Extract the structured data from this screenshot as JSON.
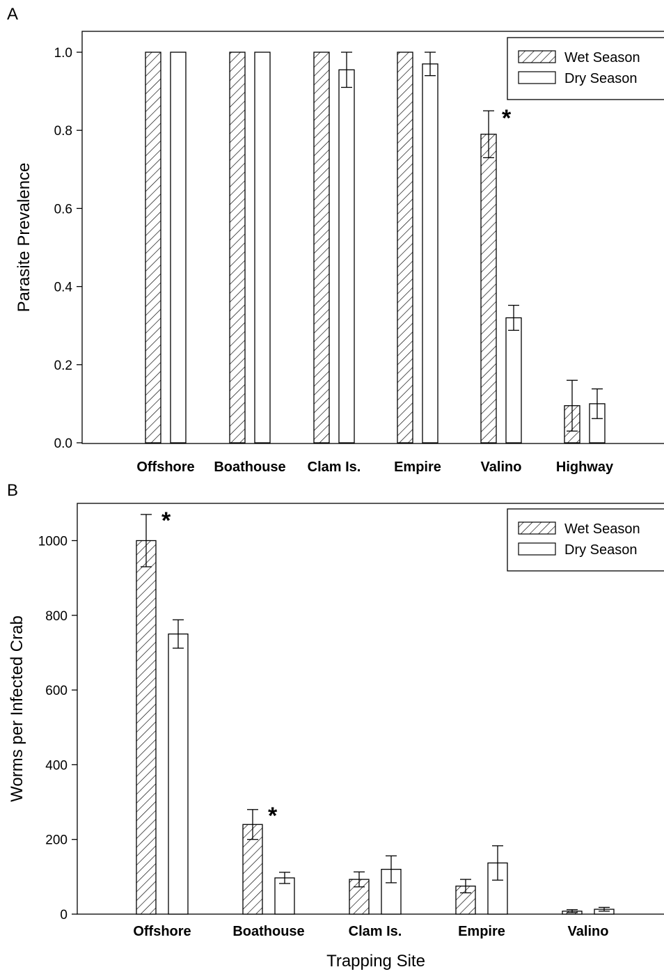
{
  "chart_data": [
    {
      "type": "bar",
      "panel_label": "A",
      "ylabel": "Parasite Prevalence",
      "xlabel": "",
      "ylim": [
        0,
        1.05
      ],
      "yticks": [
        0.0,
        0.2,
        0.4,
        0.6,
        0.8,
        1.0
      ],
      "ytick_labels": [
        "0.0",
        "0.2",
        "0.4",
        "0.6",
        "0.8",
        "1.0"
      ],
      "categories": [
        "Offshore",
        "Boathouse",
        "Clam Is.",
        "Empire",
        "Valino",
        "Highway"
      ],
      "series": [
        {
          "name": "Wet Season",
          "pattern": "hatched",
          "values": [
            1.0,
            1.0,
            1.0,
            1.0,
            0.79,
            0.095
          ],
          "errors": [
            0,
            0,
            0,
            0,
            0.06,
            0.065
          ]
        },
        {
          "name": "Dry Season",
          "pattern": "open",
          "values": [
            1.0,
            1.0,
            0.955,
            0.97,
            0.32,
            0.1
          ],
          "errors": [
            0,
            0,
            0.045,
            0.03,
            0.032,
            0.038
          ]
        }
      ],
      "significance_marks": [
        {
          "category": "Valino",
          "series": "Wet Season",
          "label": "*"
        }
      ],
      "legend": "top-right",
      "grid": false
    },
    {
      "type": "bar",
      "panel_label": "B",
      "ylabel": "Worms per Infected Crab",
      "xlabel": "Trapping Site",
      "ylim": [
        0,
        1100
      ],
      "yticks": [
        0,
        200,
        400,
        600,
        800,
        1000
      ],
      "ytick_labels": [
        "0",
        "200",
        "400",
        "600",
        "800",
        "1000"
      ],
      "categories": [
        "Offshore",
        "Boathouse",
        "Clam Is.",
        "Empire",
        "Valino"
      ],
      "series": [
        {
          "name": "Wet Season",
          "pattern": "hatched",
          "values": [
            1000,
            240,
            93,
            75,
            8
          ],
          "errors": [
            70,
            40,
            20,
            18,
            4
          ]
        },
        {
          "name": "Dry Season",
          "pattern": "open",
          "values": [
            750,
            97,
            120,
            137,
            13
          ],
          "errors": [
            38,
            15,
            36,
            46,
            5
          ]
        }
      ],
      "significance_marks": [
        {
          "category": "Offshore",
          "series": "Wet Season",
          "label": "*"
        },
        {
          "category": "Boathouse",
          "series": "Wet Season",
          "label": "*"
        }
      ],
      "legend": "top-right",
      "grid": false
    }
  ]
}
